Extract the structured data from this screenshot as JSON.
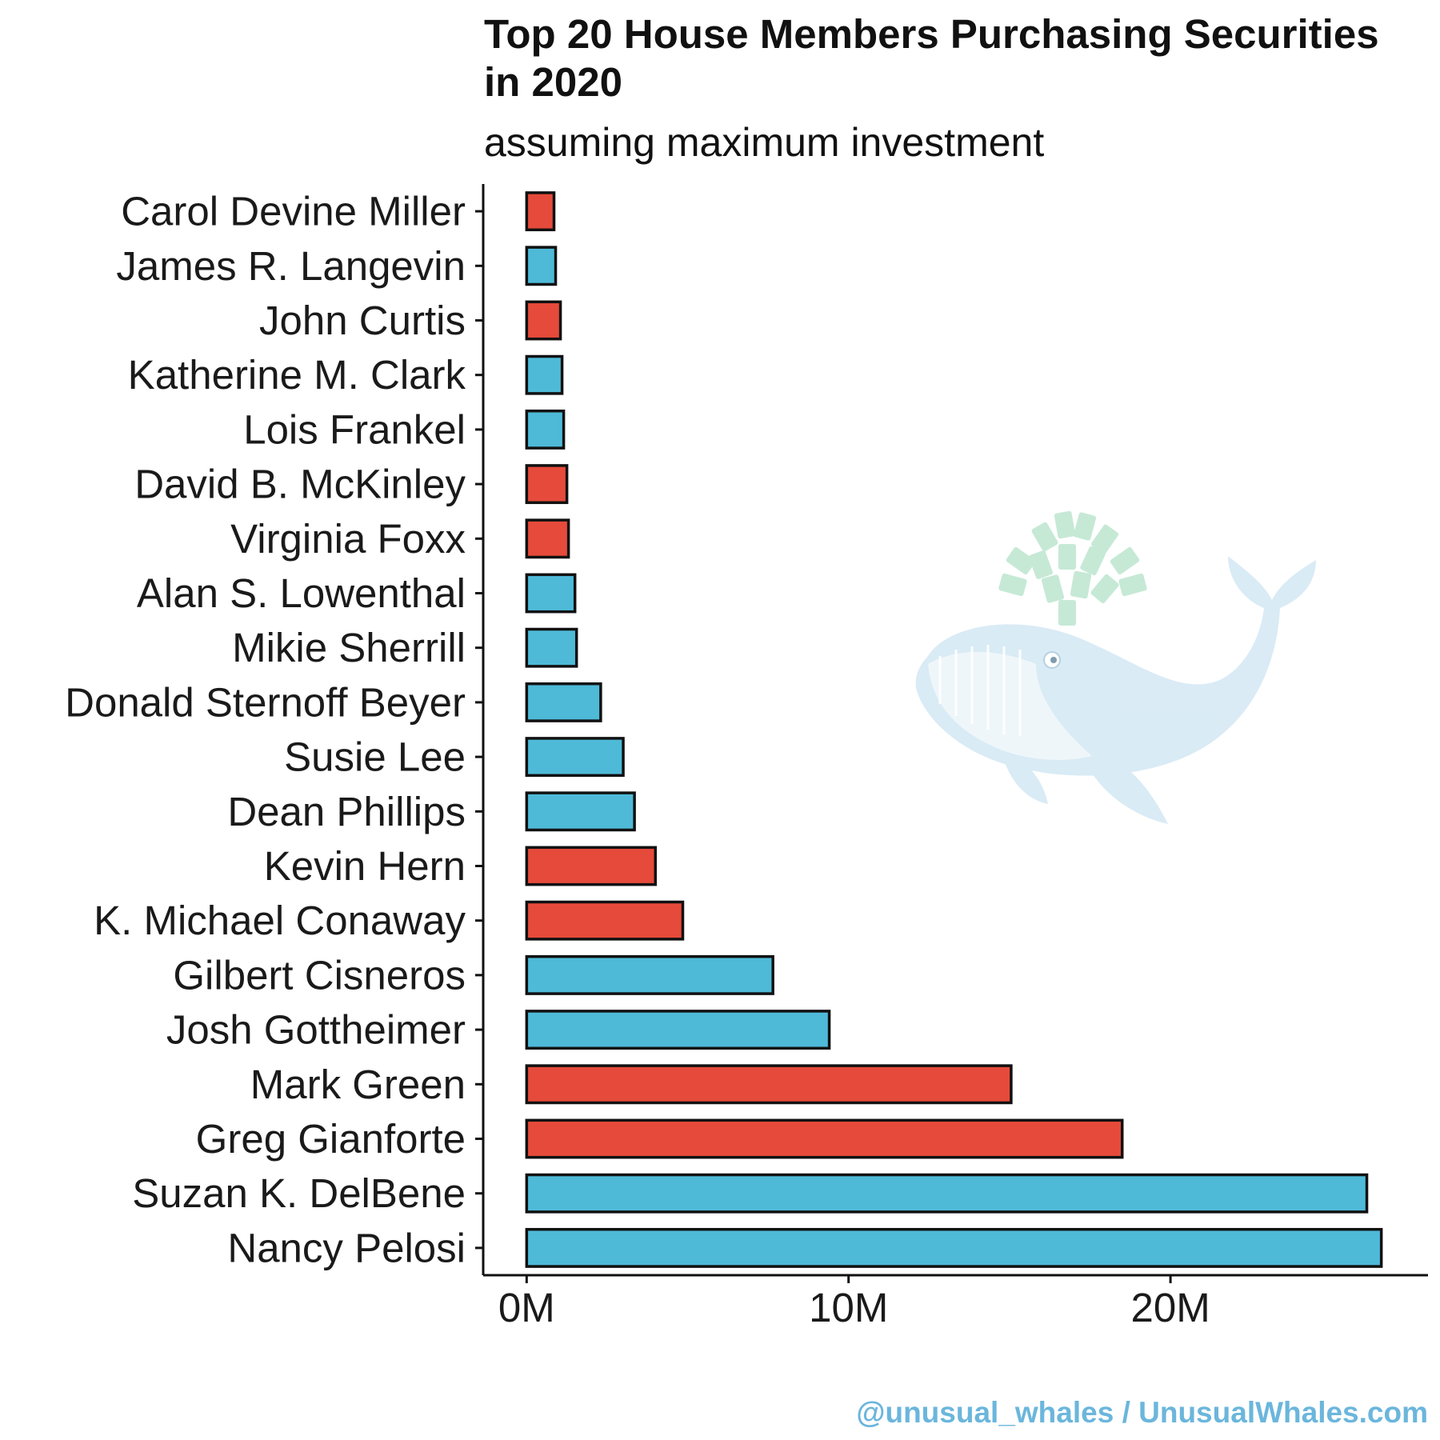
{
  "chart_data": {
    "type": "bar",
    "orientation": "horizontal",
    "title_lines": [
      "Top 20 House Members Purchasing Securities",
      "in 2020"
    ],
    "subtitle": "assuming maximum investment",
    "xlabel": "",
    "ylabel": "",
    "xlim": [
      -1.35,
      28
    ],
    "xticks": [
      0,
      10,
      20
    ],
    "xtick_labels": [
      "0M",
      "10M",
      "20M"
    ],
    "value_unit": "millions USD",
    "grid": false,
    "legend": "none",
    "colors": {
      "red": "#E64A3A",
      "blue": "#4EBAD8"
    },
    "categories": [
      "Carol Devine Miller",
      "James R. Langevin",
      "John Curtis",
      "Katherine M. Clark",
      "Lois Frankel",
      "David B. McKinley",
      "Virginia Foxx",
      "Alan S. Lowenthal",
      "Mikie Sherrill",
      "Donald Sternoff Beyer",
      "Susie Lee",
      "Dean Phillips",
      "Kevin Hern",
      "K. Michael Conaway",
      "Gilbert Cisneros",
      "Josh Gottheimer",
      "Mark Green",
      "Greg Gianforte",
      "Suzan K. DelBene",
      "Nancy Pelosi"
    ],
    "values": [
      0.85,
      0.9,
      1.05,
      1.1,
      1.15,
      1.25,
      1.3,
      1.5,
      1.55,
      2.3,
      3.0,
      3.35,
      4.0,
      4.85,
      7.65,
      9.4,
      15.05,
      18.5,
      26.1,
      26.55
    ],
    "bar_colors": [
      "red",
      "blue",
      "red",
      "blue",
      "blue",
      "red",
      "red",
      "blue",
      "blue",
      "blue",
      "blue",
      "blue",
      "red",
      "red",
      "blue",
      "blue",
      "red",
      "red",
      "blue",
      "blue"
    ]
  },
  "watermark": {
    "icon": "whale-icon"
  },
  "credit": "@unusual_whales / UnusualWhales.com"
}
